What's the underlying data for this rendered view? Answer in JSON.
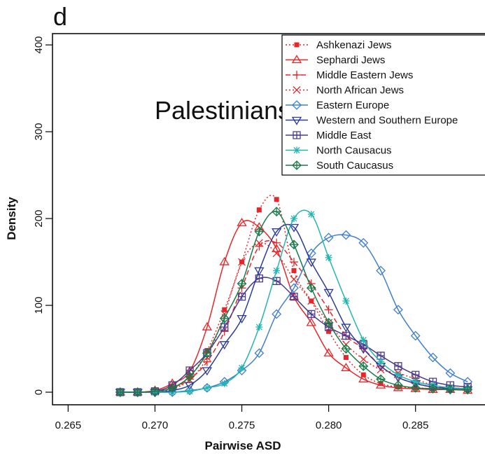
{
  "chart_data": {
    "type": "line",
    "title": "d",
    "annotation": "Palestinians",
    "x_label": "Pairwise ASD",
    "y_label": "Density",
    "xlim": [
      0.2641,
      0.289
    ],
    "ylim": [
      -14.5,
      413
    ],
    "xticks": [
      0.265,
      {
        "value": 0.27,
        "label": "0.270"
      },
      0.275,
      {
        "value": 0.28,
        "label": "0.280"
      },
      0.285
    ],
    "yticks": [
      0,
      100,
      200,
      300,
      400
    ],
    "legend": "top-right",
    "x": [
      0.268,
      0.269,
      0.27,
      0.271,
      0.272,
      0.273,
      0.274,
      0.275,
      0.276,
      0.277,
      0.278,
      0.279,
      0.28,
      0.281,
      0.282,
      0.283,
      0.284,
      0.285,
      0.286,
      0.287,
      0.288
    ],
    "series": [
      {
        "name": "Ashkenazi Jews",
        "color": "#e8262a",
        "dash": "dotted",
        "marker": "filled-square",
        "values": [
          0,
          0,
          0,
          4,
          18,
          48,
          95,
          150,
          210,
          222,
          140,
          105,
          70,
          40,
          20,
          10,
          6,
          5,
          4,
          3,
          3
        ]
      },
      {
        "name": "Sephardi Jews",
        "color": "#e8262a",
        "dash": "solid",
        "marker": "triangle-up",
        "values": [
          0,
          0,
          2,
          10,
          24,
          75,
          150,
          195,
          190,
          165,
          110,
          80,
          45,
          28,
          15,
          8,
          5,
          4,
          3,
          3,
          2
        ]
      },
      {
        "name": "Middle Eastern Jews",
        "color": "#e8262a",
        "dash": "dashed",
        "marker": "plus",
        "values": [
          0,
          0,
          1,
          5,
          15,
          35,
          70,
          120,
          168,
          172,
          150,
          125,
          95,
          65,
          50,
          30,
          17,
          10,
          6,
          5,
          4
        ]
      },
      {
        "name": "North African Jews",
        "color": "#e8262a",
        "dash": "dotted",
        "marker": "cross",
        "values": [
          0,
          0,
          1,
          4,
          14,
          40,
          90,
          150,
          172,
          160,
          130,
          105,
          80,
          55,
          38,
          26,
          22,
          15,
          8,
          5,
          4
        ]
      },
      {
        "name": "Eastern Europe",
        "color": "#3f7fcf",
        "dash": "solid",
        "marker": "diamond",
        "values": [
          0,
          0,
          0,
          0,
          2,
          5,
          12,
          25,
          45,
          90,
          120,
          160,
          178,
          181,
          172,
          140,
          95,
          65,
          40,
          22,
          12
        ]
      },
      {
        "name": "Western and Southern Europe",
        "color": "#2b3a9a",
        "dash": "solid",
        "marker": "triangle-down",
        "values": [
          0,
          0,
          0,
          2,
          8,
          25,
          55,
          85,
          140,
          185,
          190,
          150,
          115,
          75,
          50,
          30,
          17,
          10,
          6,
          4,
          3
        ]
      },
      {
        "name": "Middle East",
        "color": "#4a3b8f",
        "dash": "solid",
        "marker": "square-cross",
        "values": [
          0,
          0,
          1,
          8,
          25,
          45,
          75,
          110,
          131,
          128,
          110,
          90,
          75,
          65,
          55,
          42,
          30,
          20,
          12,
          8,
          6
        ]
      },
      {
        "name": "North Causacus",
        "color": "#22b5b0",
        "dash": "solid",
        "marker": "asterisk",
        "values": [
          0,
          0,
          0,
          0,
          1,
          5,
          10,
          28,
          75,
          140,
          200,
          205,
          155,
          105,
          60,
          35,
          20,
          12,
          8,
          5,
          4
        ]
      },
      {
        "name": "South Caucasus",
        "color": "#1a7a4a",
        "dash": "solid",
        "marker": "diamond-plus",
        "values": [
          0,
          0,
          1,
          5,
          18,
          45,
          85,
          125,
          185,
          208,
          170,
          120,
          80,
          50,
          30,
          15,
          8,
          5,
          4,
          3,
          3
        ]
      }
    ]
  }
}
